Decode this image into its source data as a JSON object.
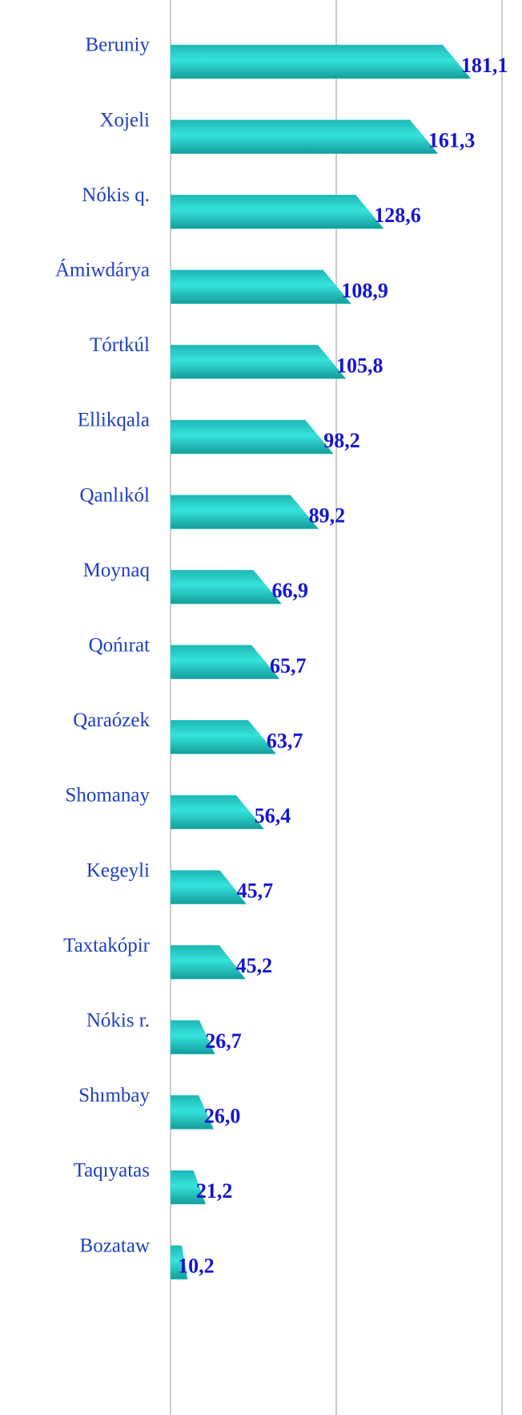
{
  "chart_data": {
    "type": "bar",
    "orientation": "horizontal",
    "categories": [
      "Beruniy",
      "Xojeli",
      "Nókis q.",
      "Ámiwdárya",
      "Tórtkúl",
      "Ellikqala",
      "Qanlıkól",
      "Moynaq",
      "Qońırat",
      "Qaraózek",
      "Shomanay",
      "Kegeyli",
      "Taxtakópir",
      "Nókis r.",
      "Shımbay",
      "Taqıyatas",
      "Bozataw"
    ],
    "values": [
      181.1,
      161.3,
      128.6,
      108.9,
      105.8,
      98.2,
      89.2,
      66.9,
      65.7,
      63.7,
      56.4,
      45.7,
      45.2,
      26.7,
      26.0,
      21.2,
      10.2
    ],
    "value_labels": [
      "181,1",
      "161,3",
      "128,6",
      "108,9",
      "105,8",
      "98,2",
      "89,2",
      "66,9",
      "65,7",
      "63,7",
      "56,4",
      "45,7",
      "45,2",
      "26,7",
      "26,0",
      "21,2",
      "10,2"
    ],
    "color": "#2fd6d0",
    "xlim": [
      0,
      200
    ],
    "xticks": [
      0,
      100,
      200
    ],
    "grid": true
  }
}
